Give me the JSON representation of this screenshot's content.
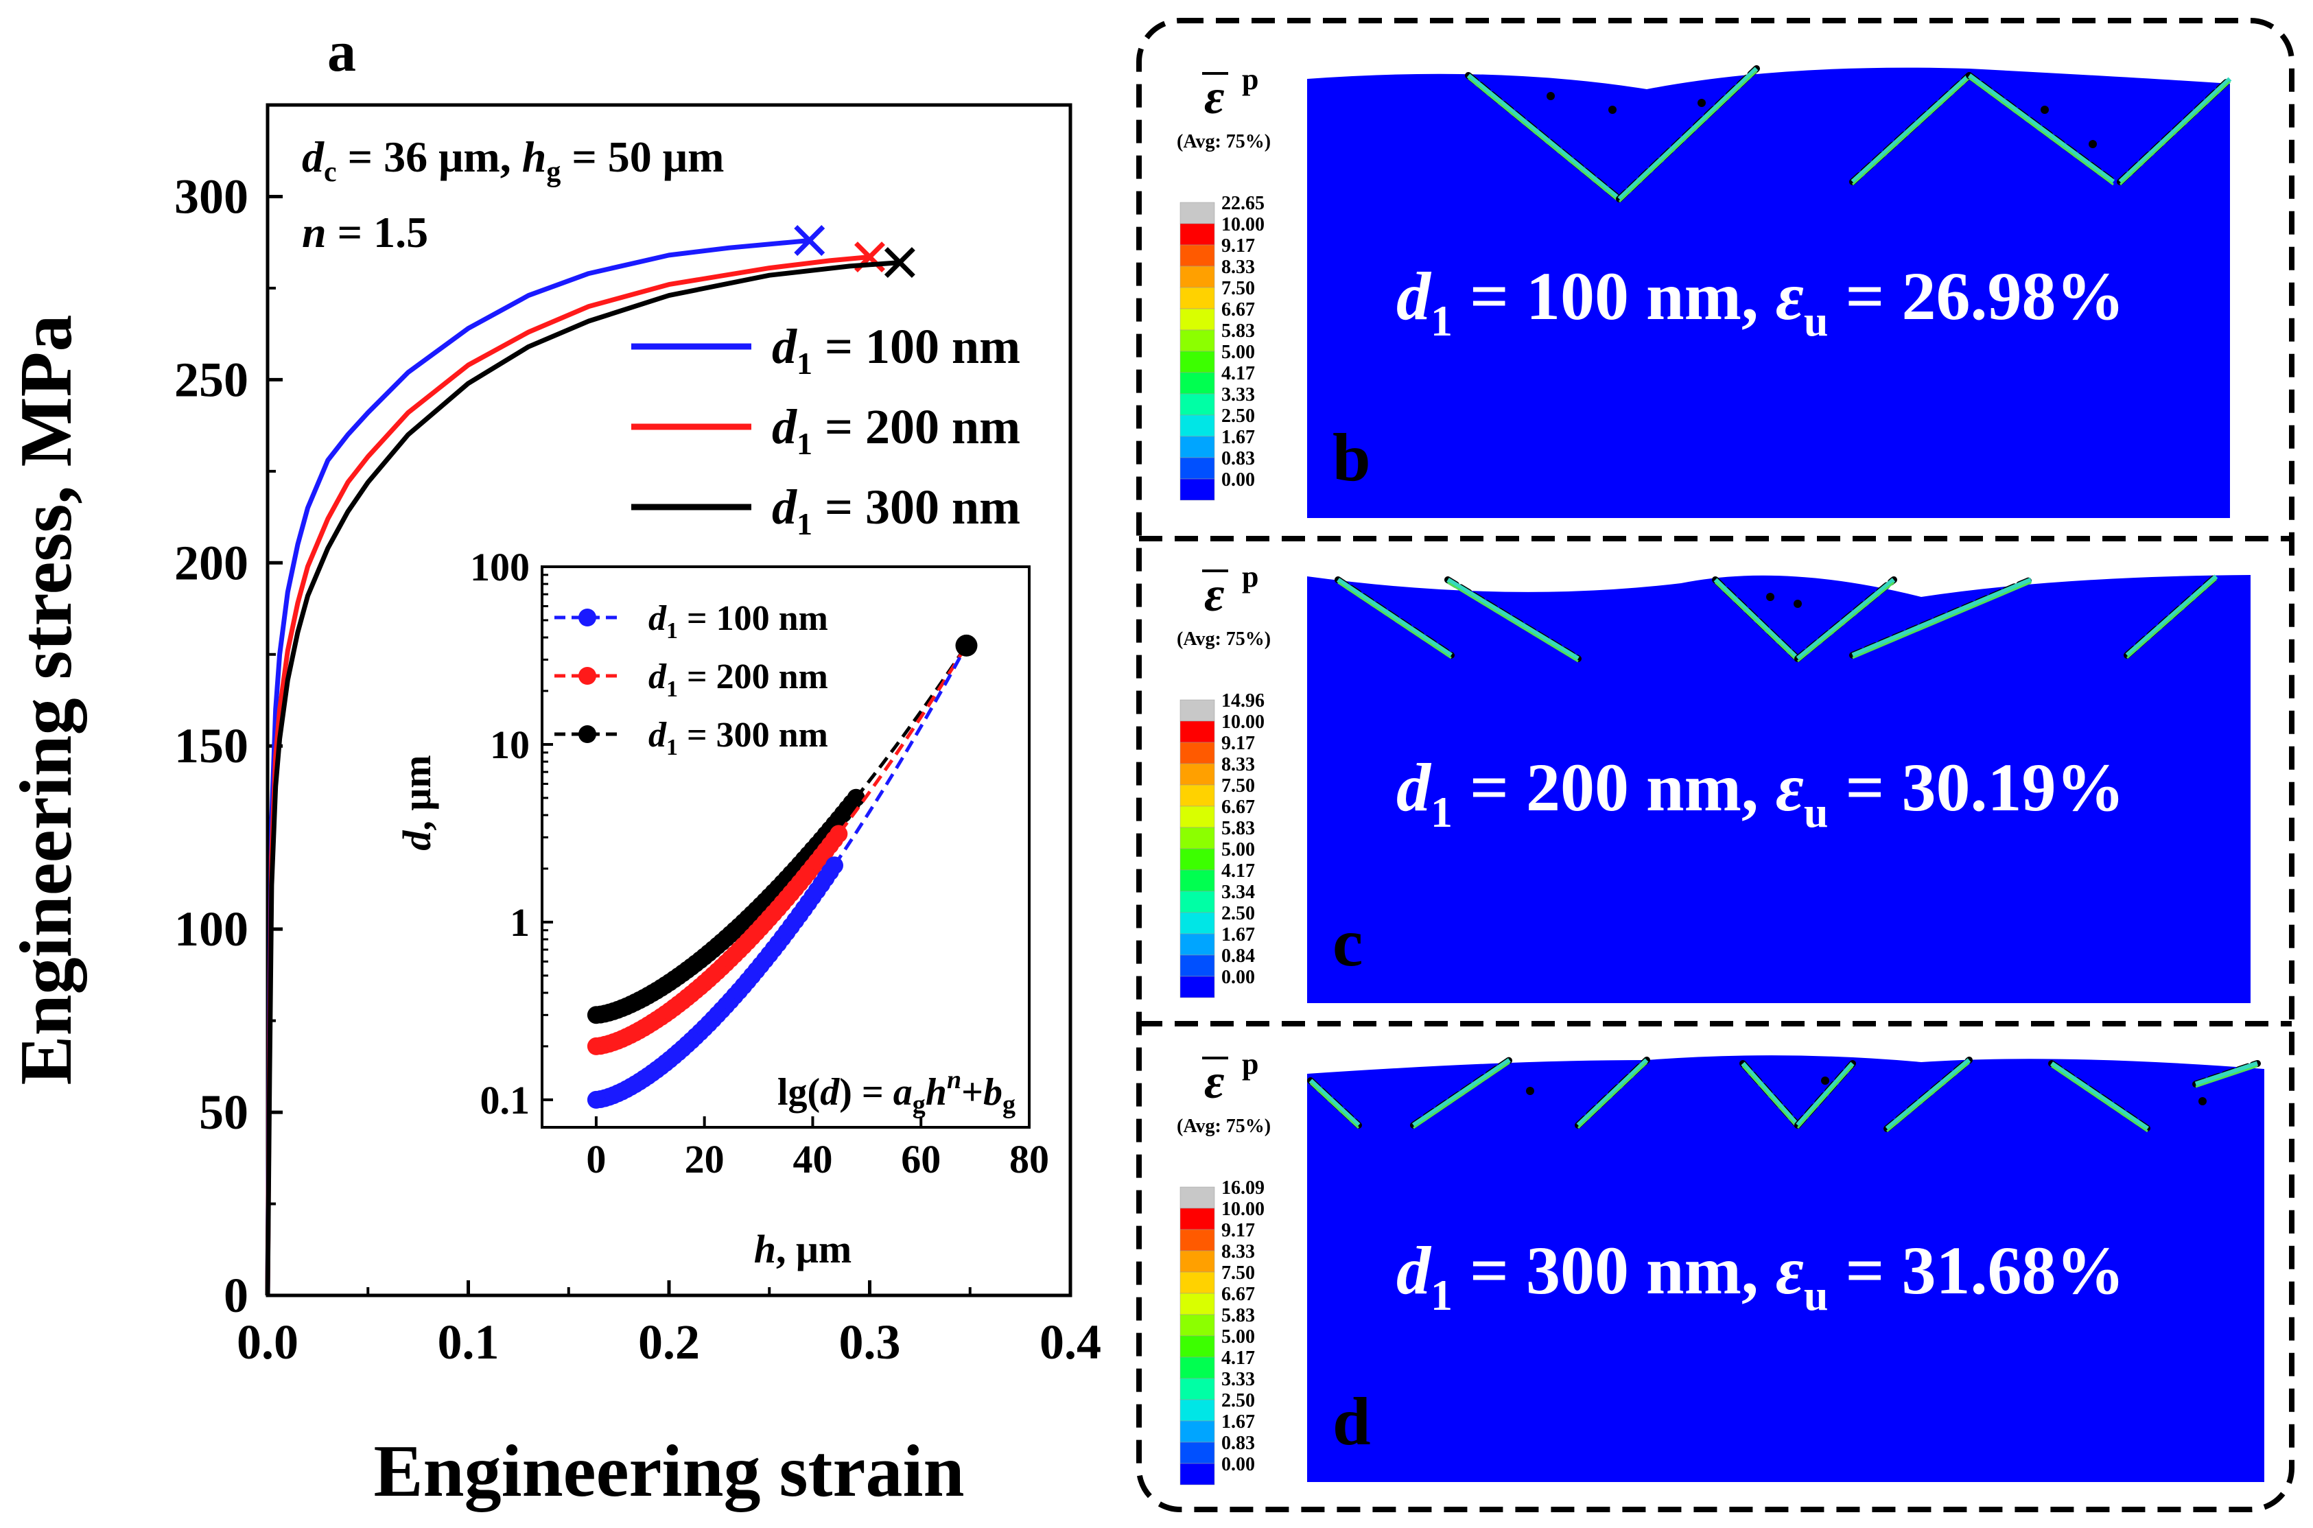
{
  "colors": {
    "blue": "#1a1aff",
    "red": "#ff1a1a",
    "black": "#000000",
    "fe_blue": "#0000ff",
    "crack_cyan": "#36d9bf",
    "crack_green": "#4fdf5a",
    "white": "#ffffff"
  },
  "chart_data": [
    {
      "type": "line",
      "panel_label": "a",
      "xlabel": "Engineering strain",
      "ylabel": "Engineering stress, MPa",
      "xlim": [
        0.0,
        0.4
      ],
      "ylim": [
        0,
        325
      ],
      "xticks": [
        "0.0",
        "0.1",
        "0.2",
        "0.3",
        "0.4"
      ],
      "yticks": [
        "0",
        "50",
        "100",
        "150",
        "200",
        "250",
        "300"
      ],
      "annotation_lines": [
        {
          "var": "d",
          "sub": "c",
          "rest": " = 36 μm, ",
          "var2": "h",
          "sub2": "g",
          "rest2": " = 50 μm"
        },
        {
          "var": "n",
          "rest": " = 1.5"
        }
      ],
      "legend_position": "right",
      "series": [
        {
          "name": "d1 = 100 nm",
          "legend_var": "d",
          "legend_sub": "1",
          "legend_rest": " = 100 nm",
          "color": "#1a1aff",
          "x": [
            0.0,
            0.001,
            0.002,
            0.004,
            0.006,
            0.01,
            0.015,
            0.02,
            0.03,
            0.04,
            0.05,
            0.07,
            0.1,
            0.13,
            0.16,
            0.2,
            0.23,
            0.26,
            0.27
          ],
          "y": [
            0,
            80,
            130,
            160,
            175,
            192,
            205,
            215,
            228,
            235,
            241,
            252,
            264,
            273,
            279,
            284,
            286,
            287.5,
            288
          ],
          "end": {
            "x": 0.27,
            "y": 288
          }
        },
        {
          "name": "d1 = 200 nm",
          "legend_var": "d",
          "legend_sub": "1",
          "legend_rest": " = 200 nm",
          "color": "#ff1a1a",
          "x": [
            0.0,
            0.001,
            0.002,
            0.004,
            0.006,
            0.01,
            0.015,
            0.02,
            0.03,
            0.04,
            0.05,
            0.07,
            0.1,
            0.13,
            0.16,
            0.2,
            0.25,
            0.28,
            0.3
          ],
          "y": [
            0,
            70,
            120,
            147,
            160,
            176,
            189,
            199,
            212,
            222,
            229,
            241,
            254,
            263,
            270,
            276,
            280.5,
            282.5,
            283.5
          ],
          "end": {
            "x": 0.3,
            "y": 283.5
          }
        },
        {
          "name": "d1 = 300 nm",
          "legend_var": "d",
          "legend_sub": "1",
          "legend_rest": " = 300 nm",
          "color": "#000000",
          "x": [
            0.0,
            0.001,
            0.002,
            0.004,
            0.006,
            0.01,
            0.015,
            0.02,
            0.03,
            0.04,
            0.05,
            0.07,
            0.1,
            0.13,
            0.16,
            0.2,
            0.25,
            0.29,
            0.315
          ],
          "y": [
            0,
            60,
            112,
            139,
            152,
            168,
            181,
            191,
            204,
            214,
            222,
            235,
            249,
            259,
            266,
            273,
            278.5,
            281,
            282
          ],
          "end": {
            "x": 0.315,
            "y": 282
          }
        }
      ]
    },
    {
      "type": "scatter",
      "panel": "inset",
      "xlabel": "h, μm",
      "ylabel": "d, μm",
      "xlim": [
        -10,
        80
      ],
      "ylim_log": [
        0.07,
        100
      ],
      "yscale": "log",
      "xticks": [
        "0",
        "20",
        "40",
        "60",
        "80"
      ],
      "yticks": [
        "0.1",
        "1",
        "10",
        "100"
      ],
      "formula": "lg(d) = a_g h^n + b_g",
      "formula_parts": {
        "prefix": "lg(",
        "var": "d",
        "mid": ") = ",
        "a": "a",
        "a_sub": "g",
        "h": "h",
        "h_sup": "n",
        "plus": "+",
        "b": "b",
        "b_sub": "g"
      },
      "exponent_n": 1.5,
      "end_point": {
        "h": 68.4,
        "d": 36
      },
      "series": [
        {
          "name": "d1 = 100 nm",
          "legend_var": "d",
          "legend_sub": "1",
          "legend_rest": " = 100 nm",
          "color": "#1a1aff",
          "d0": 0.1,
          "h_end": 44,
          "step": 0.8
        },
        {
          "name": "d1 = 200 nm",
          "legend_var": "d",
          "legend_sub": "1",
          "legend_rest": " = 200 nm",
          "color": "#ff1a1a",
          "d0": 0.2,
          "h_end": 45,
          "step": 0.8
        },
        {
          "name": "d1 = 300 nm",
          "legend_var": "d",
          "legend_sub": "1",
          "legend_rest": " = 300 nm",
          "color": "#000000",
          "d0": 0.3,
          "h_end": 48,
          "step": 0.8
        }
      ]
    }
  ],
  "fe_panels": [
    {
      "label": "b",
      "result": {
        "var": "d",
        "sub": "1",
        "mid": " = 100 nm,  ",
        "eps": "ε",
        "eps_sub": "u",
        "rest": " = 26.98%"
      },
      "colorbar": {
        "symbol": "ε",
        "sup": "p",
        "avg": "(Avg: 75%)",
        "values": [
          "22.65",
          "10.00",
          "9.17",
          "8.33",
          "7.50",
          "6.67",
          "5.83",
          "5.00",
          "4.17",
          "3.33",
          "2.50",
          "1.67",
          "0.83",
          "0.00"
        ]
      }
    },
    {
      "label": "c",
      "result": {
        "var": "d",
        "sub": "1",
        "mid": " = 200 nm,  ",
        "eps": "ε",
        "eps_sub": "u",
        "rest": " = 30.19%"
      },
      "colorbar": {
        "symbol": "ε",
        "sup": "p",
        "avg": "(Avg: 75%)",
        "values": [
          "14.96",
          "10.00",
          "9.17",
          "8.33",
          "7.50",
          "6.67",
          "5.83",
          "5.00",
          "4.17",
          "3.34",
          "2.50",
          "1.67",
          "0.84",
          "0.00"
        ]
      }
    },
    {
      "label": "d",
      "result": {
        "var": "d",
        "sub": "1",
        "mid": " = 300 nm,  ",
        "eps": "ε",
        "eps_sub": "u",
        "rest": " = 31.68%"
      },
      "colorbar": {
        "symbol": "ε",
        "sup": "p",
        "avg": "(Avg: 75%)",
        "values": [
          "16.09",
          "10.00",
          "9.17",
          "8.33",
          "7.50",
          "6.67",
          "5.83",
          "5.00",
          "4.17",
          "3.33",
          "2.50",
          "1.67",
          "0.83",
          "0.00"
        ]
      }
    }
  ],
  "colorbar_colors": [
    "#c8c8c8",
    "#ff0000",
    "#ff5a00",
    "#ffa000",
    "#ffd200",
    "#d9ff00",
    "#8cff00",
    "#3cff00",
    "#00ff50",
    "#00ffa5",
    "#00e6e6",
    "#00a5ff",
    "#0050ff",
    "#0000ff"
  ]
}
